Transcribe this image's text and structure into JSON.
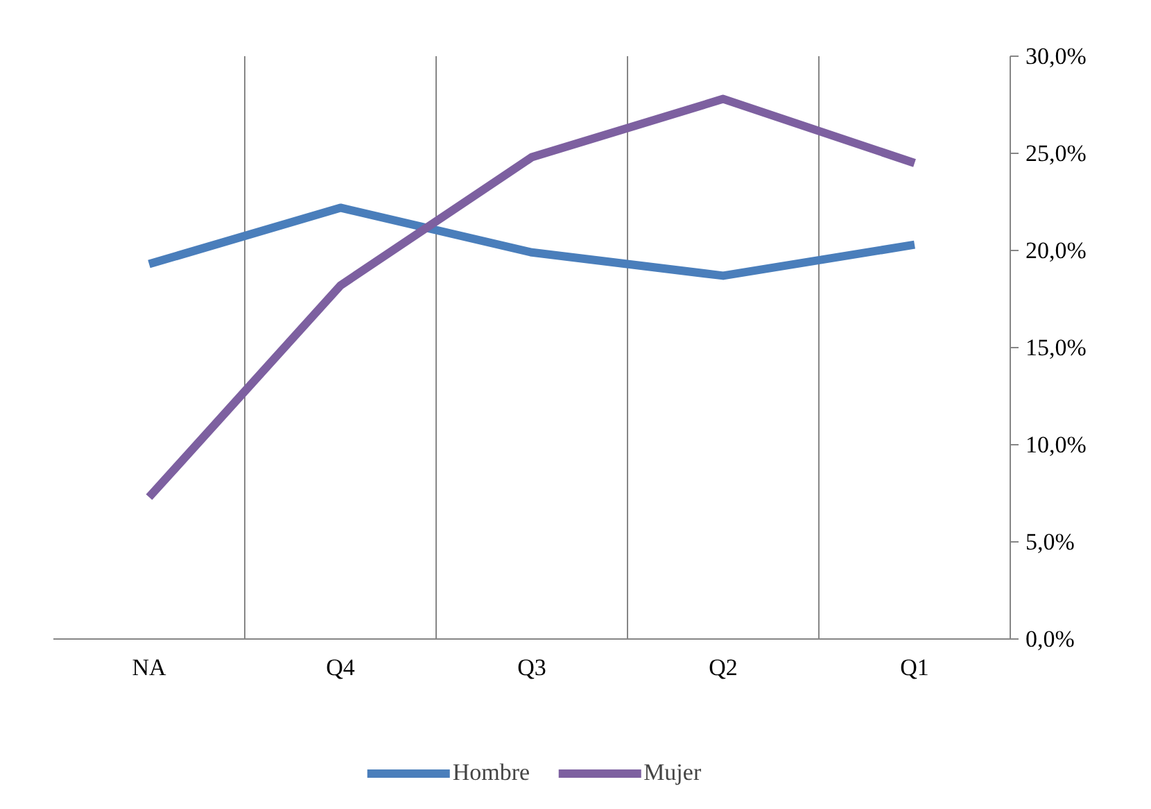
{
  "chart_data": {
    "type": "line",
    "categories": [
      "NA",
      "Q4",
      "Q3",
      "Q2",
      "Q1"
    ],
    "series": [
      {
        "name": "Hombre",
        "color": "#4a7ebb",
        "values": [
          19.3,
          22.2,
          19.9,
          18.7,
          20.3
        ]
      },
      {
        "name": "Mujer",
        "color": "#7d60a0",
        "values": [
          7.3,
          18.2,
          24.8,
          27.8,
          24.5
        ]
      }
    ],
    "ylim": [
      0,
      30
    ],
    "yticks": [
      {
        "value": 0,
        "label": "0,0%"
      },
      {
        "value": 5,
        "label": "5,0%"
      },
      {
        "value": 10,
        "label": "10,0%"
      },
      {
        "value": 15,
        "label": "15,0%"
      },
      {
        "value": 20,
        "label": "20,0%"
      },
      {
        "value": 25,
        "label": "25,0%"
      },
      {
        "value": 30,
        "label": "30,0%"
      }
    ],
    "grid": "x",
    "legend": "bottom",
    "marker": "none",
    "line_style": "solid"
  }
}
